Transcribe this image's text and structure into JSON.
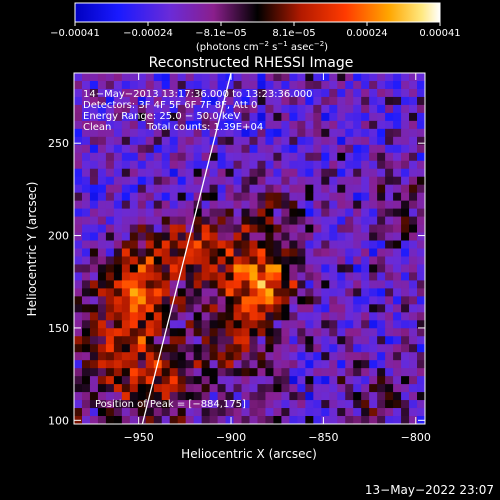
{
  "chart_data": {
    "type": "heatmap",
    "title": "Reconstructed RHESSI Image",
    "xlabel": "Heliocentric X (arcsec)",
    "ylabel": "Heliocentric Y (arcsec)",
    "xlim": [
      -985,
      -795
    ],
    "ylim": [
      98,
      288
    ],
    "xticks": [
      -950,
      -900,
      -850,
      -800
    ],
    "yticks": [
      100,
      150,
      200,
      250
    ],
    "xtick_labels": [
      "−950",
      "−900",
      "−850",
      "−800"
    ],
    "ytick_labels": [
      "100",
      "150",
      "200",
      "250"
    ],
    "colorbar": {
      "range": [
        -0.00041,
        0.00041
      ],
      "tick_labels": [
        "−0.00041",
        "−0.00024",
        "−8.1e−05",
        "8.1e−05",
        "0.00024",
        "0.00041"
      ],
      "label_prefix": "(photons cm",
      "label_sup1": "−2",
      "label_mid": " s",
      "label_sup2": "−1",
      "label_mid2": " asec",
      "label_sup3": "−2",
      "label_suffix": ")"
    },
    "annotations": [
      "14−May−2013 13:17:36.000 to 13:23:36.000",
      "Detectors: 3F 4F 5F 6F 7F 8F, Att 0",
      "Energy Range: 25.0 − 50.0 keV",
      "Clean",
      "Total counts: 1.39E+04"
    ],
    "peak_label": "Position of Peak = [−884,175]",
    "peak": [
      -884,
      175
    ],
    "footer": "13−May−2022 23:07",
    "limb_line": [
      [
        -948,
        98
      ],
      [
        -900,
        288
      ]
    ],
    "sources": [
      {
        "x": -884,
        "y": 175,
        "value": 0.00041
      },
      {
        "x": -955,
        "y": 160,
        "value": 0.0003
      },
      {
        "x": -945,
        "y": 185,
        "value": 0.00024
      },
      {
        "x": -915,
        "y": 195,
        "value": 0.00022
      },
      {
        "x": -960,
        "y": 130,
        "value": 0.0002
      },
      {
        "x": -900,
        "y": 145,
        "value": 0.00016
      },
      {
        "x": -935,
        "y": 120,
        "value": 0.00015
      },
      {
        "x": -880,
        "y": 215,
        "value": 0.00015
      },
      {
        "x": -805,
        "y": 215,
        "value": 0.00014
      },
      {
        "x": -820,
        "y": 110,
        "value": 0.00012
      }
    ]
  }
}
